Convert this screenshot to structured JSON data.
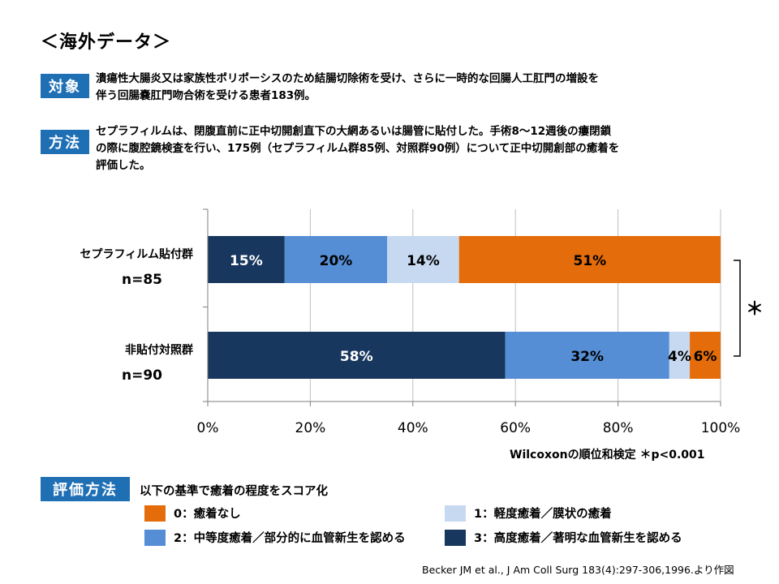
{
  "page_title": "＜海外データ＞",
  "subject": {
    "tag": "対象",
    "lines": [
      "潰瘍性大腸炎又は家族性ポリポーシスのため結腸切除術を受け、さらに一時的な回腸人工肛門の増設を",
      "伴う回腸嚢肛門吻合術を受ける患者183例。"
    ]
  },
  "method": {
    "tag": "方法",
    "lines": [
      "セプラフィルムは、閉腹直前に正中切開創直下の大網あるいは腸管に貼付した。手術8～12週後の瘻閉鎖",
      "の際に腹腔鏡検査を行い、175例（セプラフィルム群85例、対照群90例）について正中切開創部の癒着を",
      "評価した。"
    ]
  },
  "chart_data": {
    "type": "bar",
    "orientation": "horizontal",
    "stacked": true,
    "categories": [
      {
        "name": "セプラフィルム貼付群",
        "n": "n=85"
      },
      {
        "name": "非貼付対照群",
        "n": "n=90"
      }
    ],
    "series": [
      {
        "key": "score3",
        "color": "#17375e",
        "label_color": "#ffffff",
        "values": [
          15,
          58
        ]
      },
      {
        "key": "score2",
        "color": "#558ed5",
        "label_color": "#000000",
        "values": [
          20,
          32
        ]
      },
      {
        "key": "score1",
        "color": "#c6d9f1",
        "label_color": "#000000",
        "values": [
          14,
          4
        ]
      },
      {
        "key": "score0",
        "color": "#e46c0a",
        "label_color": "#000000",
        "values": [
          51,
          6
        ]
      }
    ],
    "value_suffix": "%",
    "x_ticks": [
      "0%",
      "20%",
      "40%",
      "60%",
      "80%",
      "100%"
    ],
    "xlim": [
      0,
      100
    ],
    "significance_mark": "＊",
    "test_note": "Wilcoxonの順位和検定 ＊p<0.001",
    "grid": "vertical"
  },
  "evaluation": {
    "tag": "評価方法",
    "description": "以下の基準で癒着の程度をスコア化",
    "legend": [
      {
        "label": "0：癒着なし",
        "color": "#e46c0a"
      },
      {
        "label": "1：軽度癒着／膜状の癒着",
        "color": "#c6d9f1"
      },
      {
        "label": "2：中等度癒着／部分的に血管新生を認める",
        "color": "#558ed5"
      },
      {
        "label": "3：高度癒着／著明な血管新生を認める",
        "color": "#17375e"
      }
    ]
  },
  "citation": "Becker JM et al., J Am Coll Surg 183(4):297-306,1996.より作図"
}
